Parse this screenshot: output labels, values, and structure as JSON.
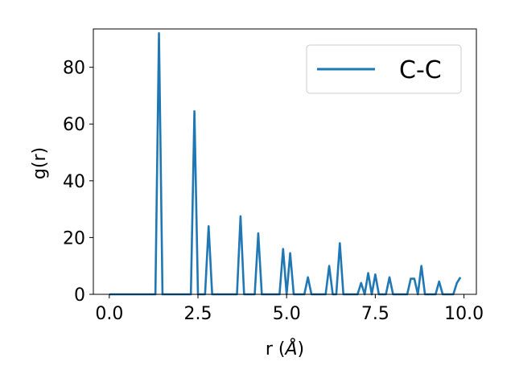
{
  "chart_data": {
    "type": "line",
    "title": "",
    "xlabel": "r (Å)",
    "ylabel": "g(r)",
    "xlim": [
      -0.45,
      10.35
    ],
    "ylim": [
      0,
      93.5
    ],
    "xticks": [
      0.0,
      2.5,
      5.0,
      7.5,
      10.0
    ],
    "xtick_labels": [
      "0.0",
      "2.5",
      "5.0",
      "7.5",
      "10.0"
    ],
    "yticks": [
      0,
      20,
      40,
      60,
      80
    ],
    "ytick_labels": [
      "0",
      "20",
      "40",
      "60",
      "80"
    ],
    "grid": false,
    "legend_position": "top-right",
    "series": [
      {
        "name": "C-C",
        "color": "#1f77b4",
        "points": [
          [
            0.0,
            0
          ],
          [
            1.3,
            0
          ],
          [
            1.4,
            92
          ],
          [
            1.5,
            0
          ],
          [
            2.3,
            0
          ],
          [
            2.4,
            64.5
          ],
          [
            2.5,
            0
          ],
          [
            2.7,
            0
          ],
          [
            2.8,
            24
          ],
          [
            2.9,
            0
          ],
          [
            3.6,
            0
          ],
          [
            3.7,
            27.5
          ],
          [
            3.8,
            0
          ],
          [
            4.1,
            0
          ],
          [
            4.2,
            21.5
          ],
          [
            4.3,
            0
          ],
          [
            4.8,
            0
          ],
          [
            4.9,
            16
          ],
          [
            5.0,
            0
          ],
          [
            5.1,
            14.5
          ],
          [
            5.2,
            0
          ],
          [
            5.5,
            0
          ],
          [
            5.6,
            6
          ],
          [
            5.7,
            0
          ],
          [
            6.1,
            0
          ],
          [
            6.2,
            10
          ],
          [
            6.3,
            0
          ],
          [
            6.4,
            0
          ],
          [
            6.5,
            18
          ],
          [
            6.6,
            0
          ],
          [
            7.0,
            0
          ],
          [
            7.1,
            4
          ],
          [
            7.2,
            0
          ],
          [
            7.3,
            7.5
          ],
          [
            7.4,
            0
          ],
          [
            7.5,
            7
          ],
          [
            7.6,
            0
          ],
          [
            7.8,
            0
          ],
          [
            7.9,
            6
          ],
          [
            8.0,
            0
          ],
          [
            8.4,
            0
          ],
          [
            8.5,
            5.5
          ],
          [
            8.6,
            5.5
          ],
          [
            8.7,
            0
          ],
          [
            8.8,
            10
          ],
          [
            8.9,
            0
          ],
          [
            9.2,
            0
          ],
          [
            9.3,
            4.5
          ],
          [
            9.4,
            0
          ],
          [
            9.7,
            0
          ],
          [
            9.8,
            4
          ],
          [
            9.9,
            6
          ]
        ]
      }
    ]
  }
}
